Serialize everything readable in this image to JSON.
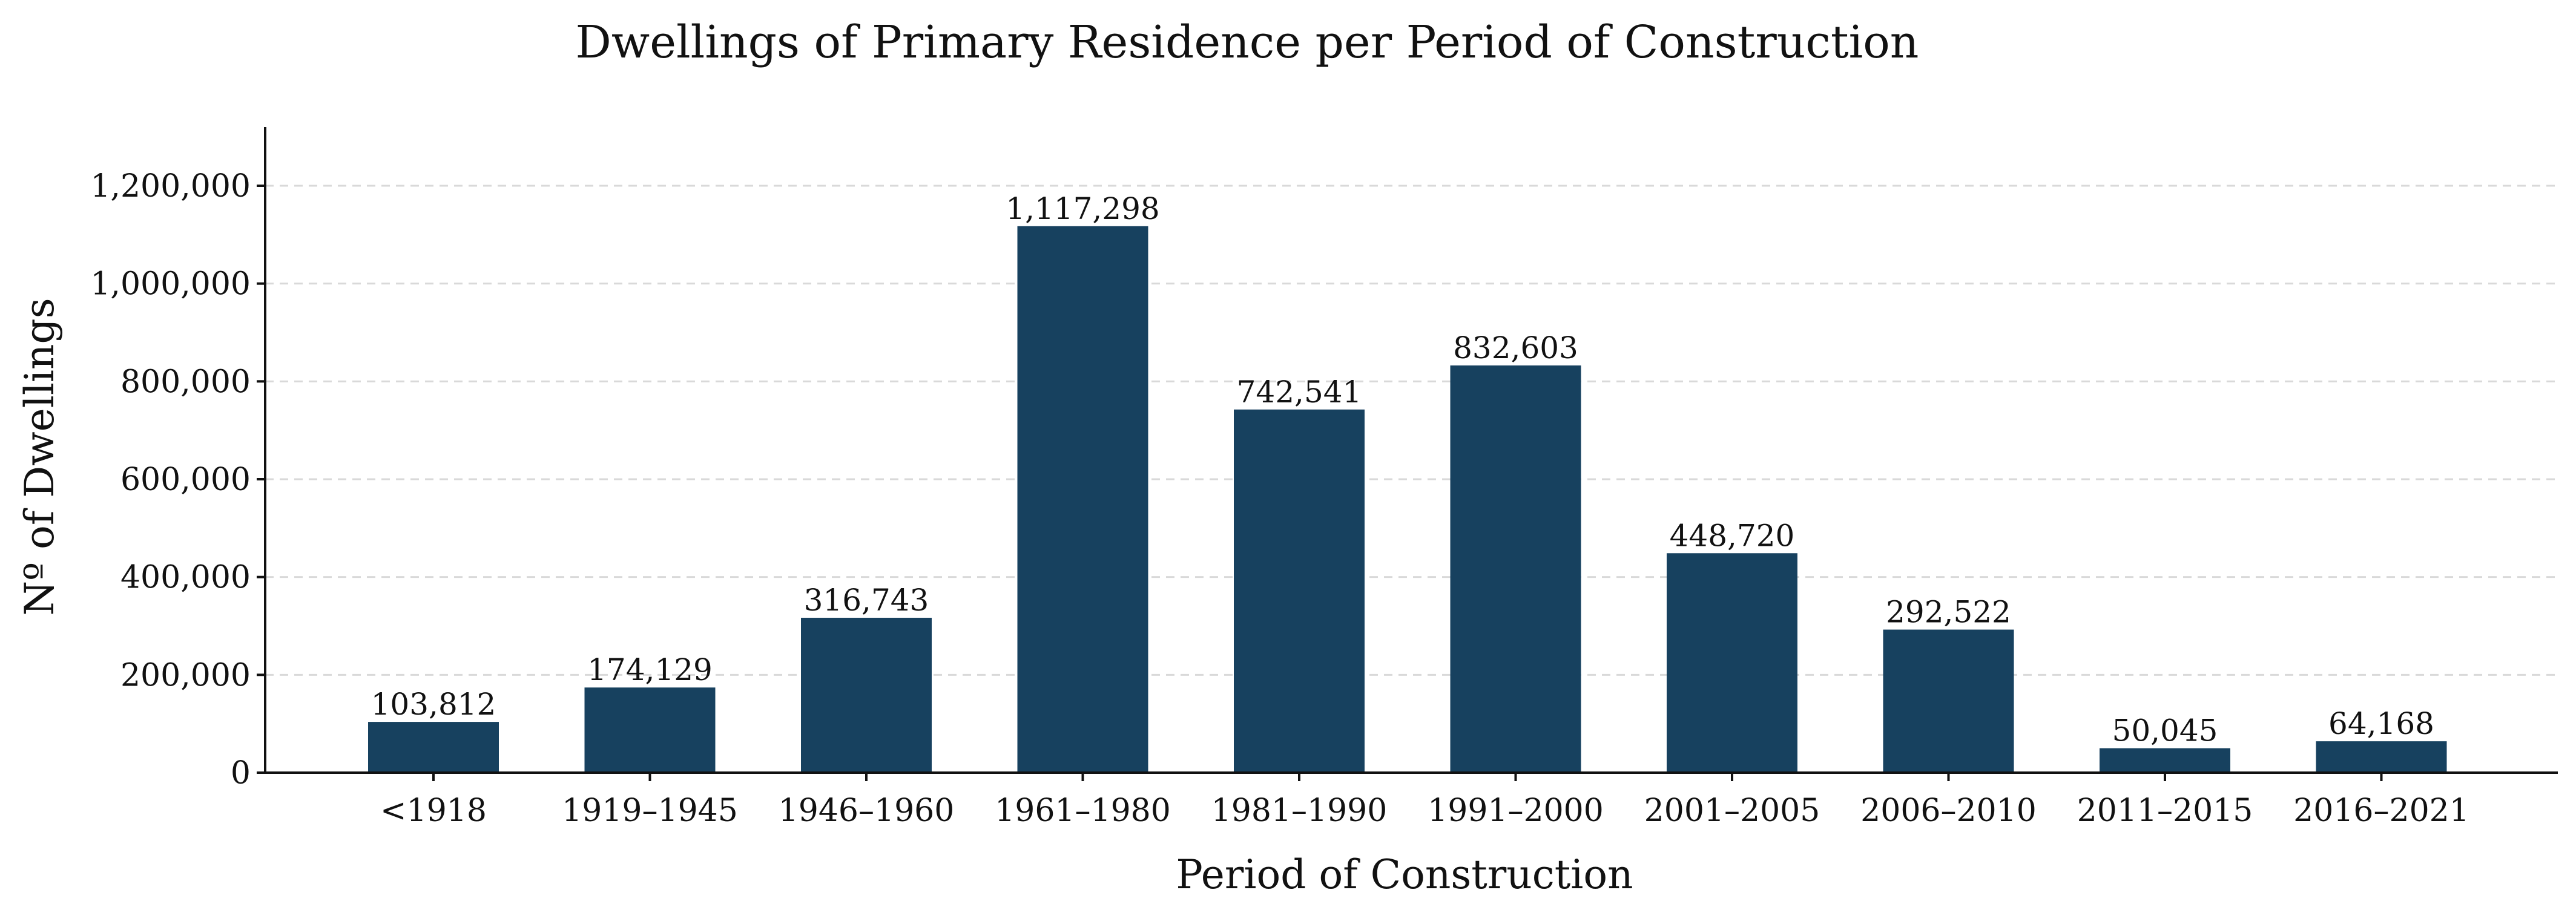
{
  "chart_data": {
    "type": "bar",
    "title": "Dwellings of Primary Residence per Period of Construction",
    "xlabel": "Period of Construction",
    "ylabel": "Nº of Dwellings",
    "categories": [
      "<1918",
      "1919–1945",
      "1946–1960",
      "1961–1980",
      "1981–1990",
      "1991–2000",
      "2001–2005",
      "2006–2010",
      "2011–2015",
      "2016–2021"
    ],
    "values": [
      103812,
      174129,
      316743,
      1117298,
      742541,
      832603,
      448720,
      292522,
      50045,
      64168
    ],
    "value_labels": [
      "103,812",
      "174,129",
      "316,743",
      "1,117,298",
      "742,541",
      "832,603",
      "448,720",
      "292,522",
      "50,045",
      "64,168"
    ],
    "yticks": [
      0,
      200000,
      400000,
      600000,
      800000,
      1000000,
      1200000
    ],
    "ytick_labels": [
      "0",
      "200,000",
      "400,000",
      "600,000",
      "800,000",
      "1,000,000",
      "1,200,000"
    ],
    "ylim": [
      0,
      1320000
    ],
    "grid": "y-dashed",
    "legend": "none",
    "bar_color": "#17415f"
  }
}
